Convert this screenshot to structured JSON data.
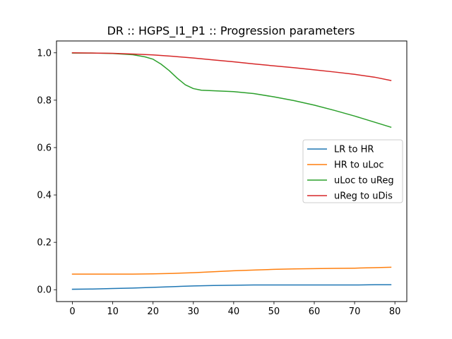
{
  "chart_data": {
    "type": "line",
    "title": "DR :: HGPS_I1_P1 ::  Progression parameters",
    "xlabel": "",
    "ylabel": "",
    "xlim": [
      -3.95,
      82.95
    ],
    "ylim": [
      -0.05,
      1.05
    ],
    "xticks": [
      0,
      10,
      20,
      30,
      40,
      50,
      60,
      70,
      80
    ],
    "yticks": [
      0.0,
      0.2,
      0.4,
      0.6,
      0.8,
      1.0
    ],
    "ytick_labels": [
      "0.0",
      "0.2",
      "0.4",
      "0.6",
      "0.8",
      "1.0"
    ],
    "grid": false,
    "legend_position": "center-right",
    "series": [
      {
        "name": "LR to HR",
        "color": "#1f77b4",
        "x": [
          0,
          5,
          10,
          15,
          20,
          25,
          30,
          35,
          40,
          45,
          50,
          55,
          60,
          65,
          70,
          75,
          79
        ],
        "values": [
          0.002,
          0.003,
          0.005,
          0.007,
          0.01,
          0.013,
          0.016,
          0.018,
          0.019,
          0.02,
          0.02,
          0.02,
          0.02,
          0.02,
          0.02,
          0.021,
          0.021
        ]
      },
      {
        "name": "HR to uLoc",
        "color": "#ff7f0e",
        "x": [
          0,
          5,
          10,
          15,
          20,
          25,
          30,
          35,
          40,
          45,
          50,
          55,
          60,
          65,
          70,
          75,
          79
        ],
        "values": [
          0.066,
          0.066,
          0.066,
          0.066,
          0.067,
          0.069,
          0.072,
          0.076,
          0.08,
          0.083,
          0.086,
          0.088,
          0.089,
          0.09,
          0.091,
          0.093,
          0.095
        ]
      },
      {
        "name": "uLoc to uReg",
        "color": "#2ca02c",
        "x": [
          0,
          5,
          10,
          15,
          18,
          20,
          22,
          24,
          26,
          28,
          30,
          32,
          35,
          40,
          45,
          50,
          55,
          60,
          65,
          70,
          75,
          79
        ],
        "values": [
          0.999,
          0.999,
          0.997,
          0.992,
          0.983,
          0.973,
          0.952,
          0.925,
          0.893,
          0.865,
          0.849,
          0.842,
          0.84,
          0.836,
          0.828,
          0.814,
          0.798,
          0.779,
          0.757,
          0.733,
          0.707,
          0.686
        ]
      },
      {
        "name": "uReg to uDis",
        "color": "#d62728",
        "x": [
          0,
          5,
          10,
          15,
          20,
          25,
          30,
          35,
          40,
          45,
          50,
          55,
          60,
          65,
          70,
          75,
          79
        ],
        "values": [
          1.0,
          0.999,
          0.998,
          0.995,
          0.991,
          0.985,
          0.978,
          0.97,
          0.962,
          0.953,
          0.945,
          0.937,
          0.928,
          0.919,
          0.909,
          0.897,
          0.883
        ]
      }
    ]
  }
}
